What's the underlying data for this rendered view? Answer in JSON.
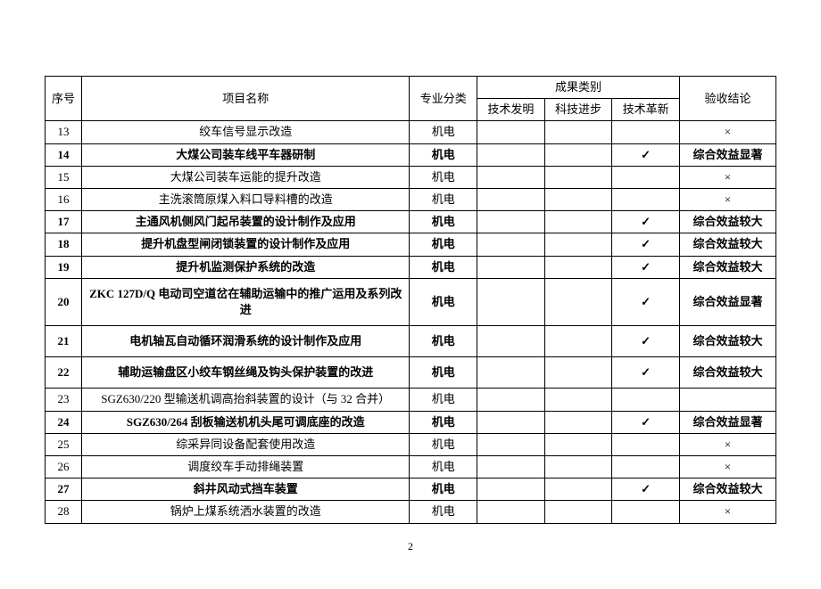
{
  "table": {
    "header": {
      "seq": "序号",
      "name": "项目名称",
      "category": "专业分类",
      "result_group": "成果类别",
      "result1": "技术发明",
      "result2": "科技进步",
      "result3": "技术革新",
      "conclusion": "验收结论"
    },
    "rows": [
      {
        "seq": "13",
        "name": "绞车信号显示改造",
        "category": "机电",
        "r1": "",
        "r2": "",
        "r3": "",
        "conclusion": "×",
        "bold": false,
        "tall": false
      },
      {
        "seq": "14",
        "name": "大煤公司装车线平车器研制",
        "category": "机电",
        "r1": "",
        "r2": "",
        "r3": "✓",
        "conclusion": "综合效益显著",
        "bold": true,
        "tall": false
      },
      {
        "seq": "15",
        "name": "大煤公司装车运能的提升改造",
        "category": "机电",
        "r1": "",
        "r2": "",
        "r3": "",
        "conclusion": "×",
        "bold": false,
        "tall": false
      },
      {
        "seq": "16",
        "name": "主洗滚筒原煤入料口导料槽的改造",
        "category": "机电",
        "r1": "",
        "r2": "",
        "r3": "",
        "conclusion": "×",
        "bold": false,
        "tall": false
      },
      {
        "seq": "17",
        "name": "主通风机侧风门起吊装置的设计制作及应用",
        "category": "机电",
        "r1": "",
        "r2": "",
        "r3": "✓",
        "conclusion": "综合效益较大",
        "bold": true,
        "tall": false
      },
      {
        "seq": "18",
        "name": "提升机盘型闸闭锁装置的设计制作及应用",
        "category": "机电",
        "r1": "",
        "r2": "",
        "r3": "✓",
        "conclusion": "综合效益较大",
        "bold": true,
        "tall": false
      },
      {
        "seq": "19",
        "name": "提升机监测保护系统的改造",
        "category": "机电",
        "r1": "",
        "r2": "",
        "r3": "✓",
        "conclusion": "综合效益较大",
        "bold": true,
        "tall": false
      },
      {
        "seq": "20",
        "name": "ZKC 127D/Q 电动司空道岔在辅助运输中的推广运用及系列改进",
        "category": "机电",
        "r1": "",
        "r2": "",
        "r3": "✓",
        "conclusion": "综合效益显著",
        "bold": true,
        "tall": true
      },
      {
        "seq": "21",
        "name": "电机轴瓦自动循环润滑系统的设计制作及应用",
        "category": "机电",
        "r1": "",
        "r2": "",
        "r3": "✓",
        "conclusion": "综合效益较大",
        "bold": true,
        "tall": true
      },
      {
        "seq": "22",
        "name": "辅助运输盘区小绞车钢丝绳及钩头保护装置的改进",
        "category": "机电",
        "r1": "",
        "r2": "",
        "r3": "✓",
        "conclusion": "综合效益较大",
        "bold": true,
        "tall": true
      },
      {
        "seq": "23",
        "name": "SGZ630/220 型输送机调高抬斜装置的设计（与 32 合并）",
        "category": "机电",
        "r1": "",
        "r2": "",
        "r3": "",
        "conclusion": "",
        "bold": false,
        "tall": false
      },
      {
        "seq": "24",
        "name": "SGZ630/264 刮板输送机机头尾可调底座的改造",
        "category": "机电",
        "r1": "",
        "r2": "",
        "r3": "✓",
        "conclusion": "综合效益显著",
        "bold": true,
        "tall": false
      },
      {
        "seq": "25",
        "name": "综采异同设备配套使用改造",
        "category": "机电",
        "r1": "",
        "r2": "",
        "r3": "",
        "conclusion": "×",
        "bold": false,
        "tall": false
      },
      {
        "seq": "26",
        "name": "调度绞车手动排绳装置",
        "category": "机电",
        "r1": "",
        "r2": "",
        "r3": "",
        "conclusion": "×",
        "bold": false,
        "tall": false
      },
      {
        "seq": "27",
        "name": "斜井风动式挡车装置",
        "category": "机电",
        "r1": "",
        "r2": "",
        "r3": "✓",
        "conclusion": "综合效益较大",
        "bold": true,
        "tall": false
      },
      {
        "seq": "28",
        "name": "锅炉上煤系统洒水装置的改造",
        "category": "机电",
        "r1": "",
        "r2": "",
        "r3": "",
        "conclusion": "×",
        "bold": false,
        "tall": false
      }
    ]
  },
  "page_number": "2"
}
